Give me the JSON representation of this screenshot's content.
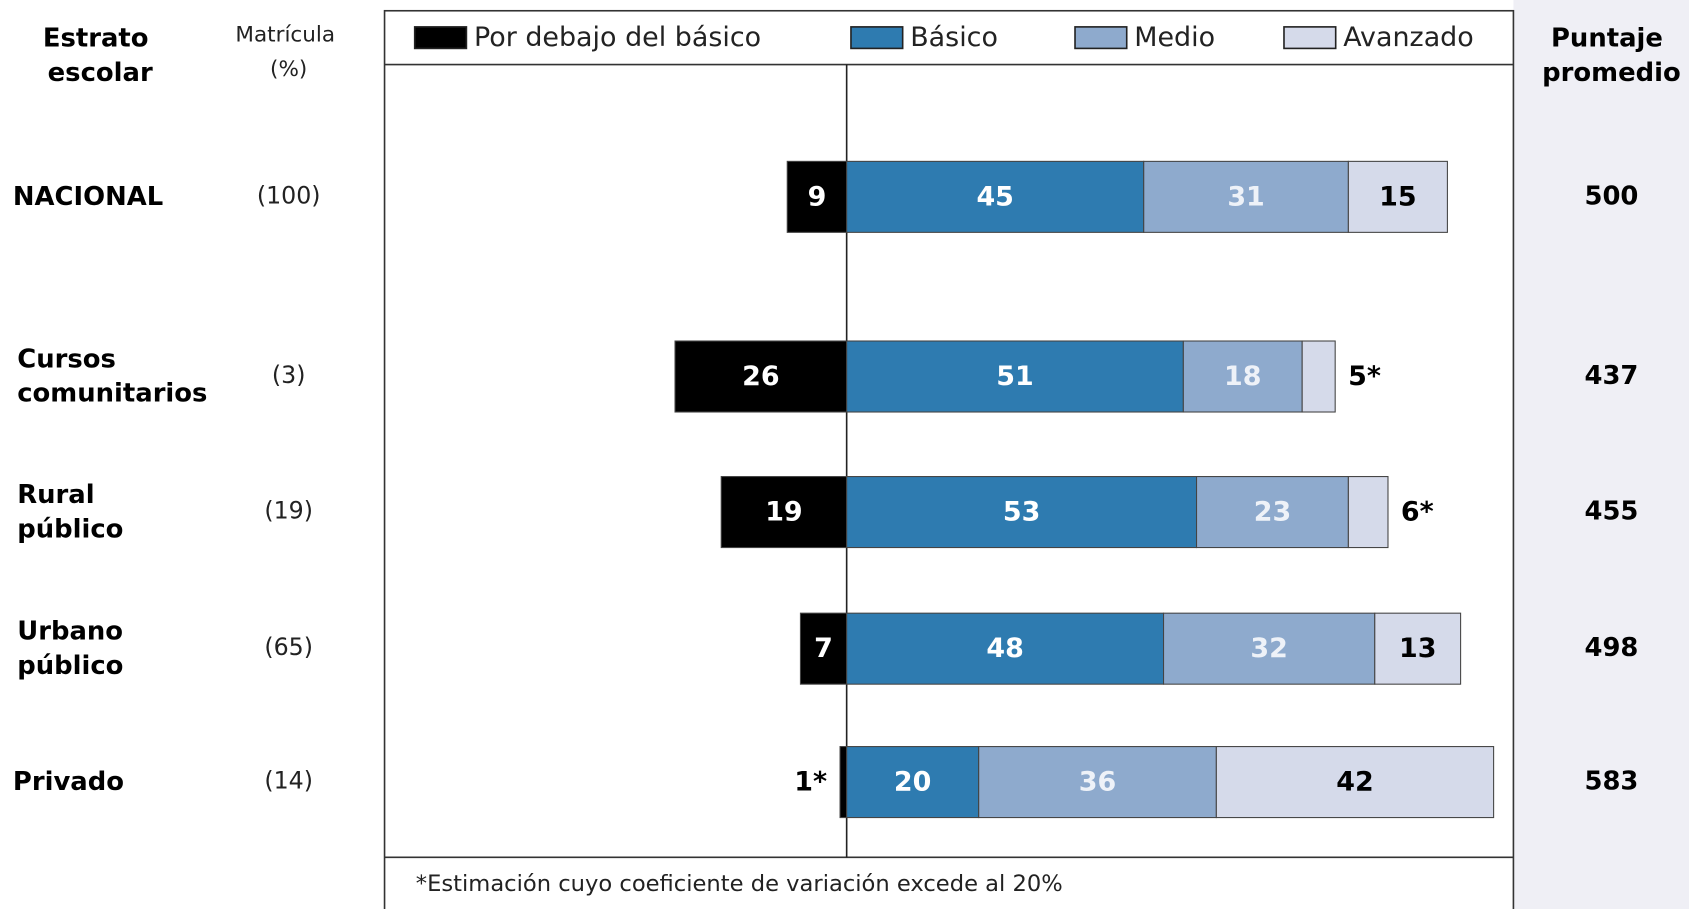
{
  "chart_data": {
    "type": "diverging_bar",
    "row_header": "Estrato escolar",
    "enrollment_header": "Matrícula (%)",
    "score_header": "Puntaje promedio",
    "categories": [
      "NACIONAL",
      "Cursos comunitarios",
      "Rural público",
      "Urbano público",
      "Privado"
    ],
    "enrollment_labels": [
      "(100)",
      "(3)",
      "(19)",
      "(65)",
      "(14)"
    ],
    "scores": [
      500,
      437,
      455,
      498,
      583
    ],
    "xlim": [
      -70,
      101
    ],
    "series": [
      {
        "name": "Por debajo del básico",
        "color": "#000000",
        "label_color": "#ffffff",
        "values": [
          9,
          26,
          19,
          7,
          1
        ],
        "value_labels": [
          "9",
          "26",
          "19",
          "7",
          "1*"
        ]
      },
      {
        "name": "Básico",
        "color": "#2e7bb0",
        "label_color": "#ffffff",
        "values": [
          45,
          51,
          53,
          48,
          20
        ],
        "value_labels": [
          "45",
          "51",
          "53",
          "48",
          "20"
        ]
      },
      {
        "name": "Medio",
        "color": "#8eaacd",
        "label_color": "#eef2f8",
        "values": [
          31,
          18,
          23,
          32,
          36
        ],
        "value_labels": [
          "31",
          "18",
          "23",
          "32",
          "36"
        ]
      },
      {
        "name": "Avanzado",
        "color": "#d5daea",
        "label_color": "#000000",
        "values": [
          15,
          5,
          6,
          13,
          42
        ],
        "value_labels": [
          "15",
          "5*",
          "6*",
          "13",
          "42"
        ]
      }
    ],
    "footnote": "*Estimación cuyo coeficiente de variación excede al 20%"
  }
}
